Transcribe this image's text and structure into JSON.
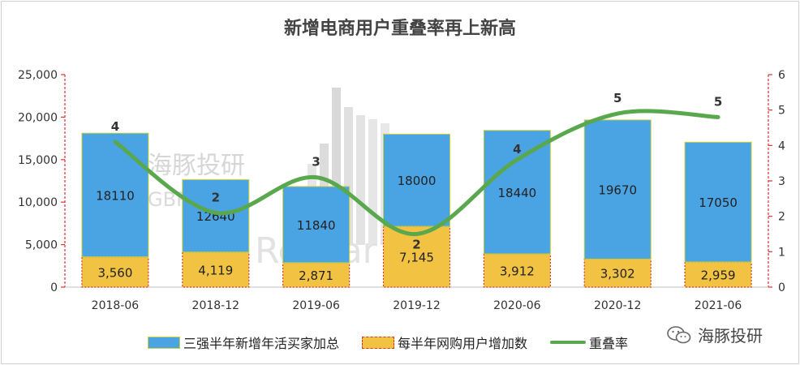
{
  "chart_data": {
    "type": "bar",
    "title": "新增电商用户重叠率再上新高",
    "categories": [
      "2018-06",
      "2018-12",
      "2019-06",
      "2019-12",
      "2020-06",
      "2020-12",
      "2021-06"
    ],
    "series": [
      {
        "name": "三强半年新增年活买家加总",
        "type": "stacked-bar",
        "values": [
          18110,
          12640,
          11840,
          18000,
          18440,
          19670,
          17050
        ],
        "labels": [
          "18110",
          "12640",
          "11840",
          "18000",
          "18440",
          "19670",
          "17050"
        ],
        "color": "#4aa3e2"
      },
      {
        "name": "每半年网购用户增加数",
        "type": "stacked-bar",
        "values": [
          3560,
          4119,
          2871,
          7145,
          3912,
          3302,
          2959
        ],
        "labels": [
          "3,560",
          "4,119",
          "2,871",
          "7,145",
          "3,912",
          "3,302",
          "2,959"
        ],
        "color": "#f2c243"
      },
      {
        "name": "重叠率",
        "type": "line",
        "axis": "right",
        "values": [
          4.1,
          2.1,
          3.1,
          1.5,
          3.6,
          4.9,
          4.8
        ],
        "labels": [
          "4",
          "2",
          "3",
          "2",
          "4",
          "5",
          "5"
        ],
        "color": "#5aa84e"
      }
    ],
    "y_left": {
      "min": 0,
      "max": 25000,
      "ticks": [
        "0",
        "5,000",
        "10,000",
        "15,000",
        "20,000",
        "25,000"
      ]
    },
    "y_right": {
      "min": 0,
      "max": 6,
      "ticks": [
        "0",
        "1",
        "2",
        "3",
        "4",
        "5",
        "6"
      ]
    },
    "grid": false,
    "legend": "bottom"
  },
  "watermark": {
    "cn": "海豚投研",
    "en_a": "GBR",
    "en_b": "lph Resear"
  },
  "brand": {
    "text": "海豚投研",
    "icon": "wechat-icon"
  }
}
